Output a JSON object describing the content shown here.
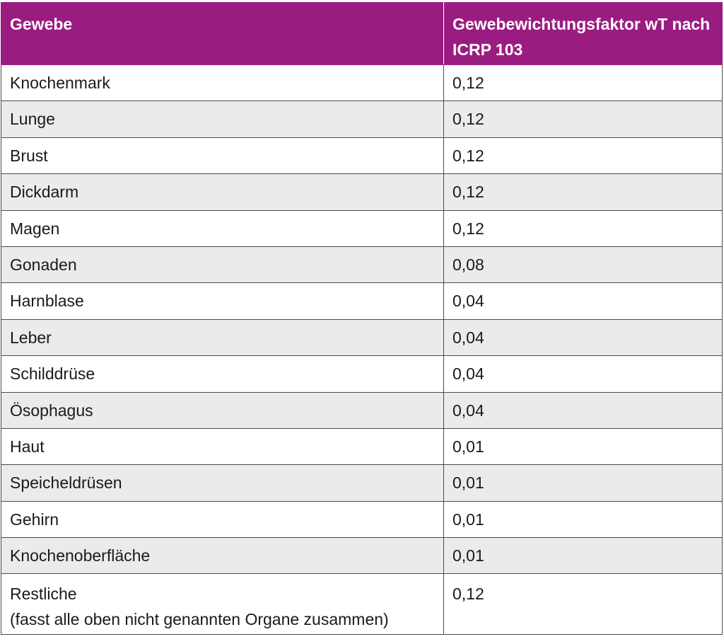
{
  "table": {
    "headers": [
      "Gewebe",
      "Gewebewichtungsfaktor wT nach ICRP 103"
    ],
    "rows": [
      {
        "tissue": "Knochenmark",
        "factor": "0,12"
      },
      {
        "tissue": "Lunge",
        "factor": "0,12"
      },
      {
        "tissue": "Brust",
        "factor": "0,12"
      },
      {
        "tissue": "Dickdarm",
        "factor": "0,12"
      },
      {
        "tissue": "Magen",
        "factor": "0,12"
      },
      {
        "tissue": "Gonaden",
        "factor": "0,08"
      },
      {
        "tissue": "Harnblase",
        "factor": "0,04"
      },
      {
        "tissue": "Leber",
        "factor": "0,04"
      },
      {
        "tissue": "Schilddrüse",
        "factor": "0,04"
      },
      {
        "tissue": "Ösophagus",
        "factor": "0,04"
      },
      {
        "tissue": "Haut",
        "factor": "0,01"
      },
      {
        "tissue": "Speicheldrüsen",
        "factor": "0,01"
      },
      {
        "tissue": "Gehirn",
        "factor": "0,01"
      },
      {
        "tissue": "Knochenoberfläche",
        "factor": "0,01"
      },
      {
        "tissue": "Restliche",
        "note": "(fasst alle oben nicht genannten Organe zusammen)",
        "factor": "0,12"
      }
    ]
  },
  "colors": {
    "header_background": "#9b1c80",
    "header_text": "#ffffff",
    "alternate_row": "#ebebeb",
    "border": "#4a4a4a"
  }
}
